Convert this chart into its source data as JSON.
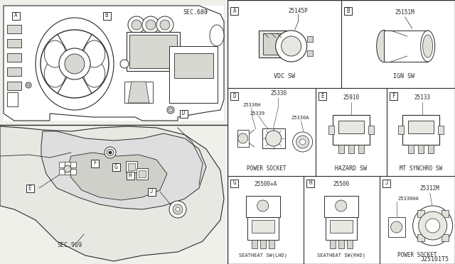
{
  "bg_color": "#f0f0eb",
  "line_color": "#2a2a2a",
  "white": "#ffffff",
  "gray1": "#d8d8d3",
  "gray2": "#c8c8c3",
  "sec_680": "SEC.680",
  "sec_969": "SEC.969",
  "ref": "J25101T5",
  "right_cells": {
    "A": {
      "id": "A",
      "part": "25145P",
      "label": "VDC SW"
    },
    "B": {
      "id": "B",
      "part": "25151M",
      "label": "IGN SW"
    },
    "D": {
      "id": "D",
      "part": "25330",
      "label": "POWER SOCKET",
      "extra": [
        "25336H",
        "25339",
        "25330A"
      ]
    },
    "E": {
      "id": "E",
      "part": "25910",
      "label": "HAZARD SW"
    },
    "F": {
      "id": "F",
      "part": "25133",
      "label": "MT SYNCHRO SW"
    },
    "G": {
      "id": "G",
      "part": "25500+A",
      "label": "SEATHEAT SW(LHD)"
    },
    "H": {
      "id": "H",
      "part": "25500",
      "label": "SEATHEAT SW(RHD)"
    },
    "J": {
      "id": "J",
      "part": "25312M",
      "label": "POWER SOCKET",
      "extra": [
        "25336HA"
      ]
    }
  }
}
